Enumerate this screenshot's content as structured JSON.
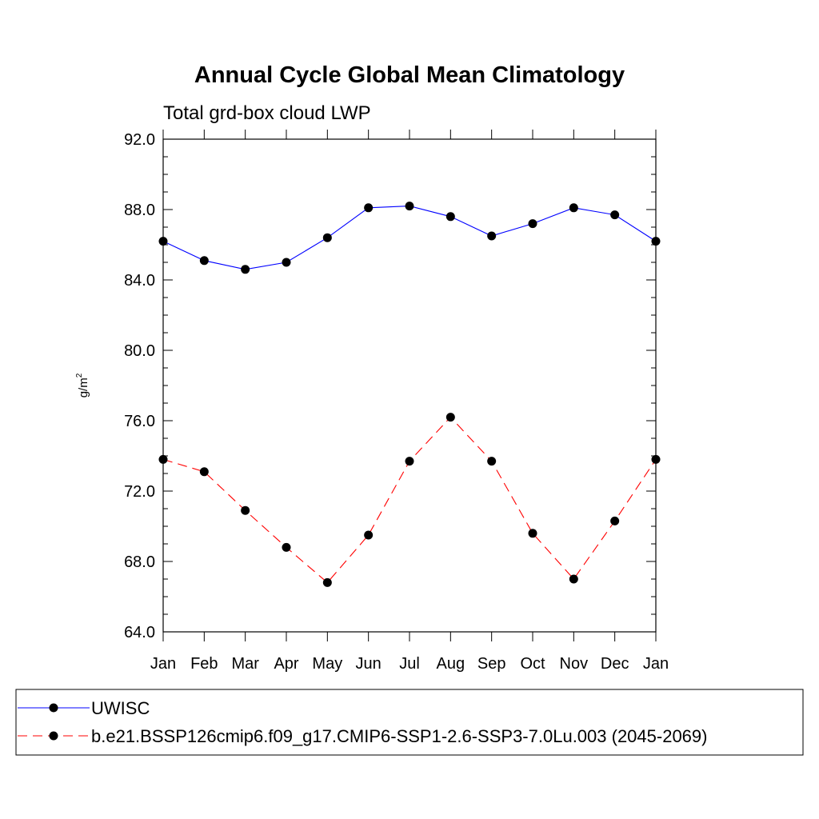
{
  "chart_data": {
    "type": "line",
    "title": "Annual Cycle Global Mean Climatology",
    "subtitle": "Total grd-box cloud LWP",
    "ylabel": "g/m",
    "ylabel_superscript": "2",
    "categories": [
      "Jan",
      "Feb",
      "Mar",
      "Apr",
      "May",
      "Jun",
      "Jul",
      "Aug",
      "Sep",
      "Oct",
      "Nov",
      "Dec",
      "Jan"
    ],
    "ylim": [
      64.0,
      92.0
    ],
    "yticks": [
      64.0,
      68.0,
      72.0,
      76.0,
      80.0,
      84.0,
      88.0,
      92.0
    ],
    "ytick_labels": [
      "64.0",
      "68.0",
      "72.0",
      "76.0",
      "80.0",
      "84.0",
      "88.0",
      "92.0"
    ],
    "grid": false,
    "legend_position": "bottom",
    "series": [
      {
        "name": "UWISC",
        "color": "#0000ff",
        "style": "solid",
        "values": [
          86.2,
          85.1,
          84.6,
          85.0,
          86.4,
          88.1,
          88.2,
          87.6,
          86.5,
          87.2,
          88.1,
          87.7,
          86.2
        ]
      },
      {
        "name": "b.e21.BSSP126cmip6.f09_g17.CMIP6-SSP1-2.6-SSP3-7.0Lu.003 (2045-2069)",
        "color": "#ff0000",
        "style": "dashed",
        "values": [
          73.8,
          73.1,
          70.9,
          68.8,
          66.8,
          69.5,
          73.7,
          76.2,
          73.7,
          69.6,
          67.0,
          70.3,
          73.8
        ]
      }
    ]
  }
}
